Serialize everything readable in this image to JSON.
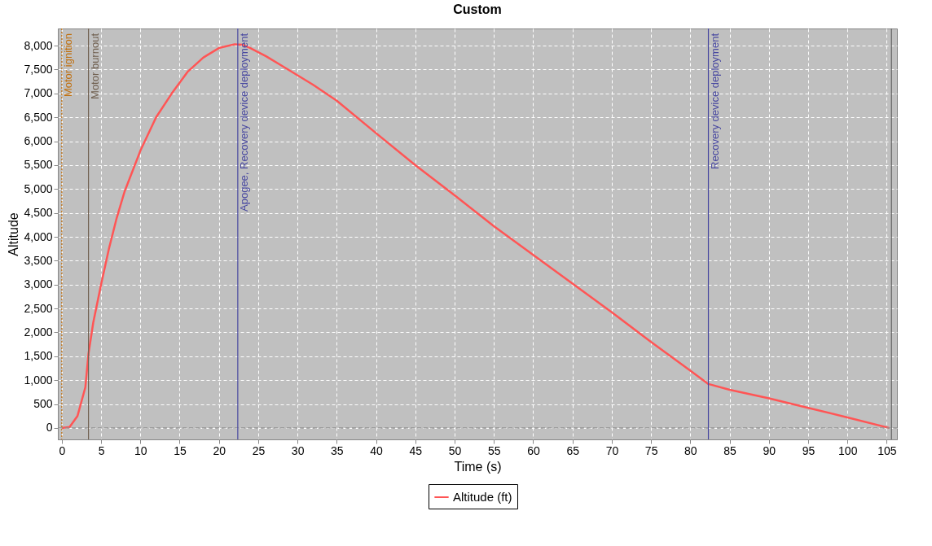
{
  "chart_data": {
    "type": "line",
    "title": "Custom",
    "xlabel": "Time (s)",
    "ylabel": "Altitude",
    "x": [
      0,
      1,
      2,
      3,
      3.4,
      4,
      5,
      6,
      7,
      8,
      10,
      12,
      14,
      16,
      18,
      20,
      22,
      23,
      24,
      26,
      28,
      30,
      32,
      35,
      40,
      45,
      50,
      55,
      60,
      65,
      70,
      75,
      80,
      82.3,
      85,
      90,
      95,
      100,
      105.3
    ],
    "series": [
      {
        "name": "Altitude (ft)",
        "color": "#ff5555",
        "values": [
          0,
          20,
          250,
          850,
          1550,
          2200,
          3000,
          3750,
          4400,
          4950,
          5800,
          6500,
          7000,
          7450,
          7750,
          7950,
          8030,
          8020,
          7950,
          7780,
          7580,
          7380,
          7180,
          6850,
          6170,
          5500,
          4870,
          4220,
          3620,
          3020,
          2420,
          1800,
          1200,
          920,
          800,
          620,
          420,
          220,
          0
        ]
      }
    ],
    "xlim": [
      -0.5,
      106.3
    ],
    "ylim": [
      -240,
      8360
    ],
    "xticks": [
      0,
      5,
      10,
      15,
      20,
      25,
      30,
      35,
      40,
      45,
      50,
      55,
      60,
      65,
      70,
      75,
      80,
      85,
      90,
      95,
      100,
      105
    ],
    "yticks": [
      0,
      500,
      {
        "value": 1000,
        "label": "1,000"
      },
      {
        "value": 1500,
        "label": "1,500"
      },
      {
        "value": 2000,
        "label": "2,000"
      },
      {
        "value": 2500,
        "label": "2,500"
      },
      {
        "value": 3000,
        "label": "3,000"
      },
      {
        "value": 3500,
        "label": "3,500"
      },
      {
        "value": 4000,
        "label": "4,000"
      },
      {
        "value": 4500,
        "label": "4,500"
      },
      {
        "value": 5000,
        "label": "5,000"
      },
      {
        "value": 5500,
        "label": "5,500"
      },
      {
        "value": 6000,
        "label": "6,000"
      },
      {
        "value": 6500,
        "label": "6,500"
      },
      {
        "value": 7000,
        "label": "7,000"
      },
      {
        "value": 7500,
        "label": "7,500"
      },
      {
        "value": 8000,
        "label": "8,000"
      }
    ],
    "ref_lines": [
      {
        "axis": "y",
        "value": 0,
        "color": "#909090",
        "line_style": "dashed"
      },
      {
        "axis": "x",
        "value": 0,
        "label": "Motor ignition",
        "color": "#c07010",
        "line_style": "dotted"
      },
      {
        "axis": "x",
        "value": 3.4,
        "label": "Motor burnout",
        "color": "#706050"
      },
      {
        "axis": "x",
        "value": 22.4,
        "label": "Apogee, Recovery device deployment",
        "color": "#4848a0"
      },
      {
        "axis": "x",
        "value": 82.3,
        "label": "Recovery device deployment",
        "color": "#4848a0"
      },
      {
        "axis": "x",
        "value": 105.6,
        "color": "#606060"
      }
    ],
    "grid": true,
    "legend": "bottom",
    "marker": "none",
    "line_style": "solid"
  }
}
